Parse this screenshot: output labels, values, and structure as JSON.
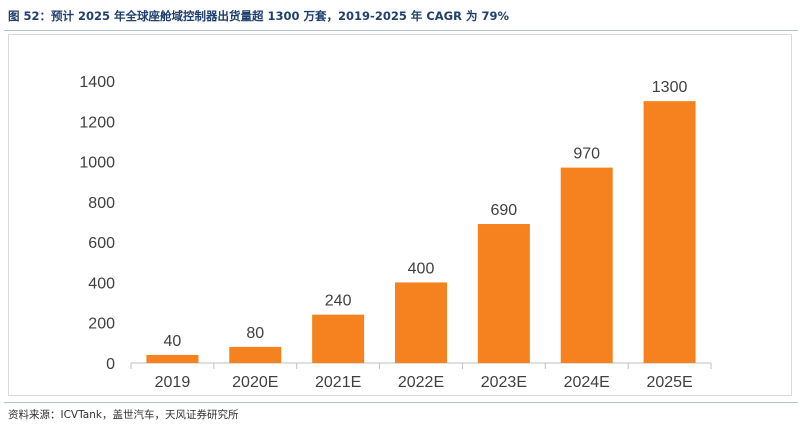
{
  "figure": {
    "title": "图 52：预计 2025 年全球座舱域控制器出货量超 1300 万套，2019-2025 年 CAGR 为 79%",
    "source": "资料来源：ICVTank，盖世汽车，天风证券研究所"
  },
  "colors": {
    "bar": "#f5821f",
    "axis_text": "#404040",
    "axis_line": "#bfbfbf",
    "title": "#1f3f6e"
  },
  "chart_data": {
    "type": "bar",
    "categories": [
      "2019",
      "2020E",
      "2021E",
      "2022E",
      "2023E",
      "2024E",
      "2025E"
    ],
    "values": [
      40,
      80,
      240,
      400,
      690,
      970,
      1300
    ],
    "value_labels": [
      "40",
      "80",
      "240",
      "400",
      "690",
      "970",
      "1300"
    ],
    "yticks": [
      0,
      200,
      400,
      600,
      800,
      1000,
      1200,
      1400
    ],
    "ylim": [
      0,
      1400
    ],
    "grid": false,
    "legend": "none"
  }
}
